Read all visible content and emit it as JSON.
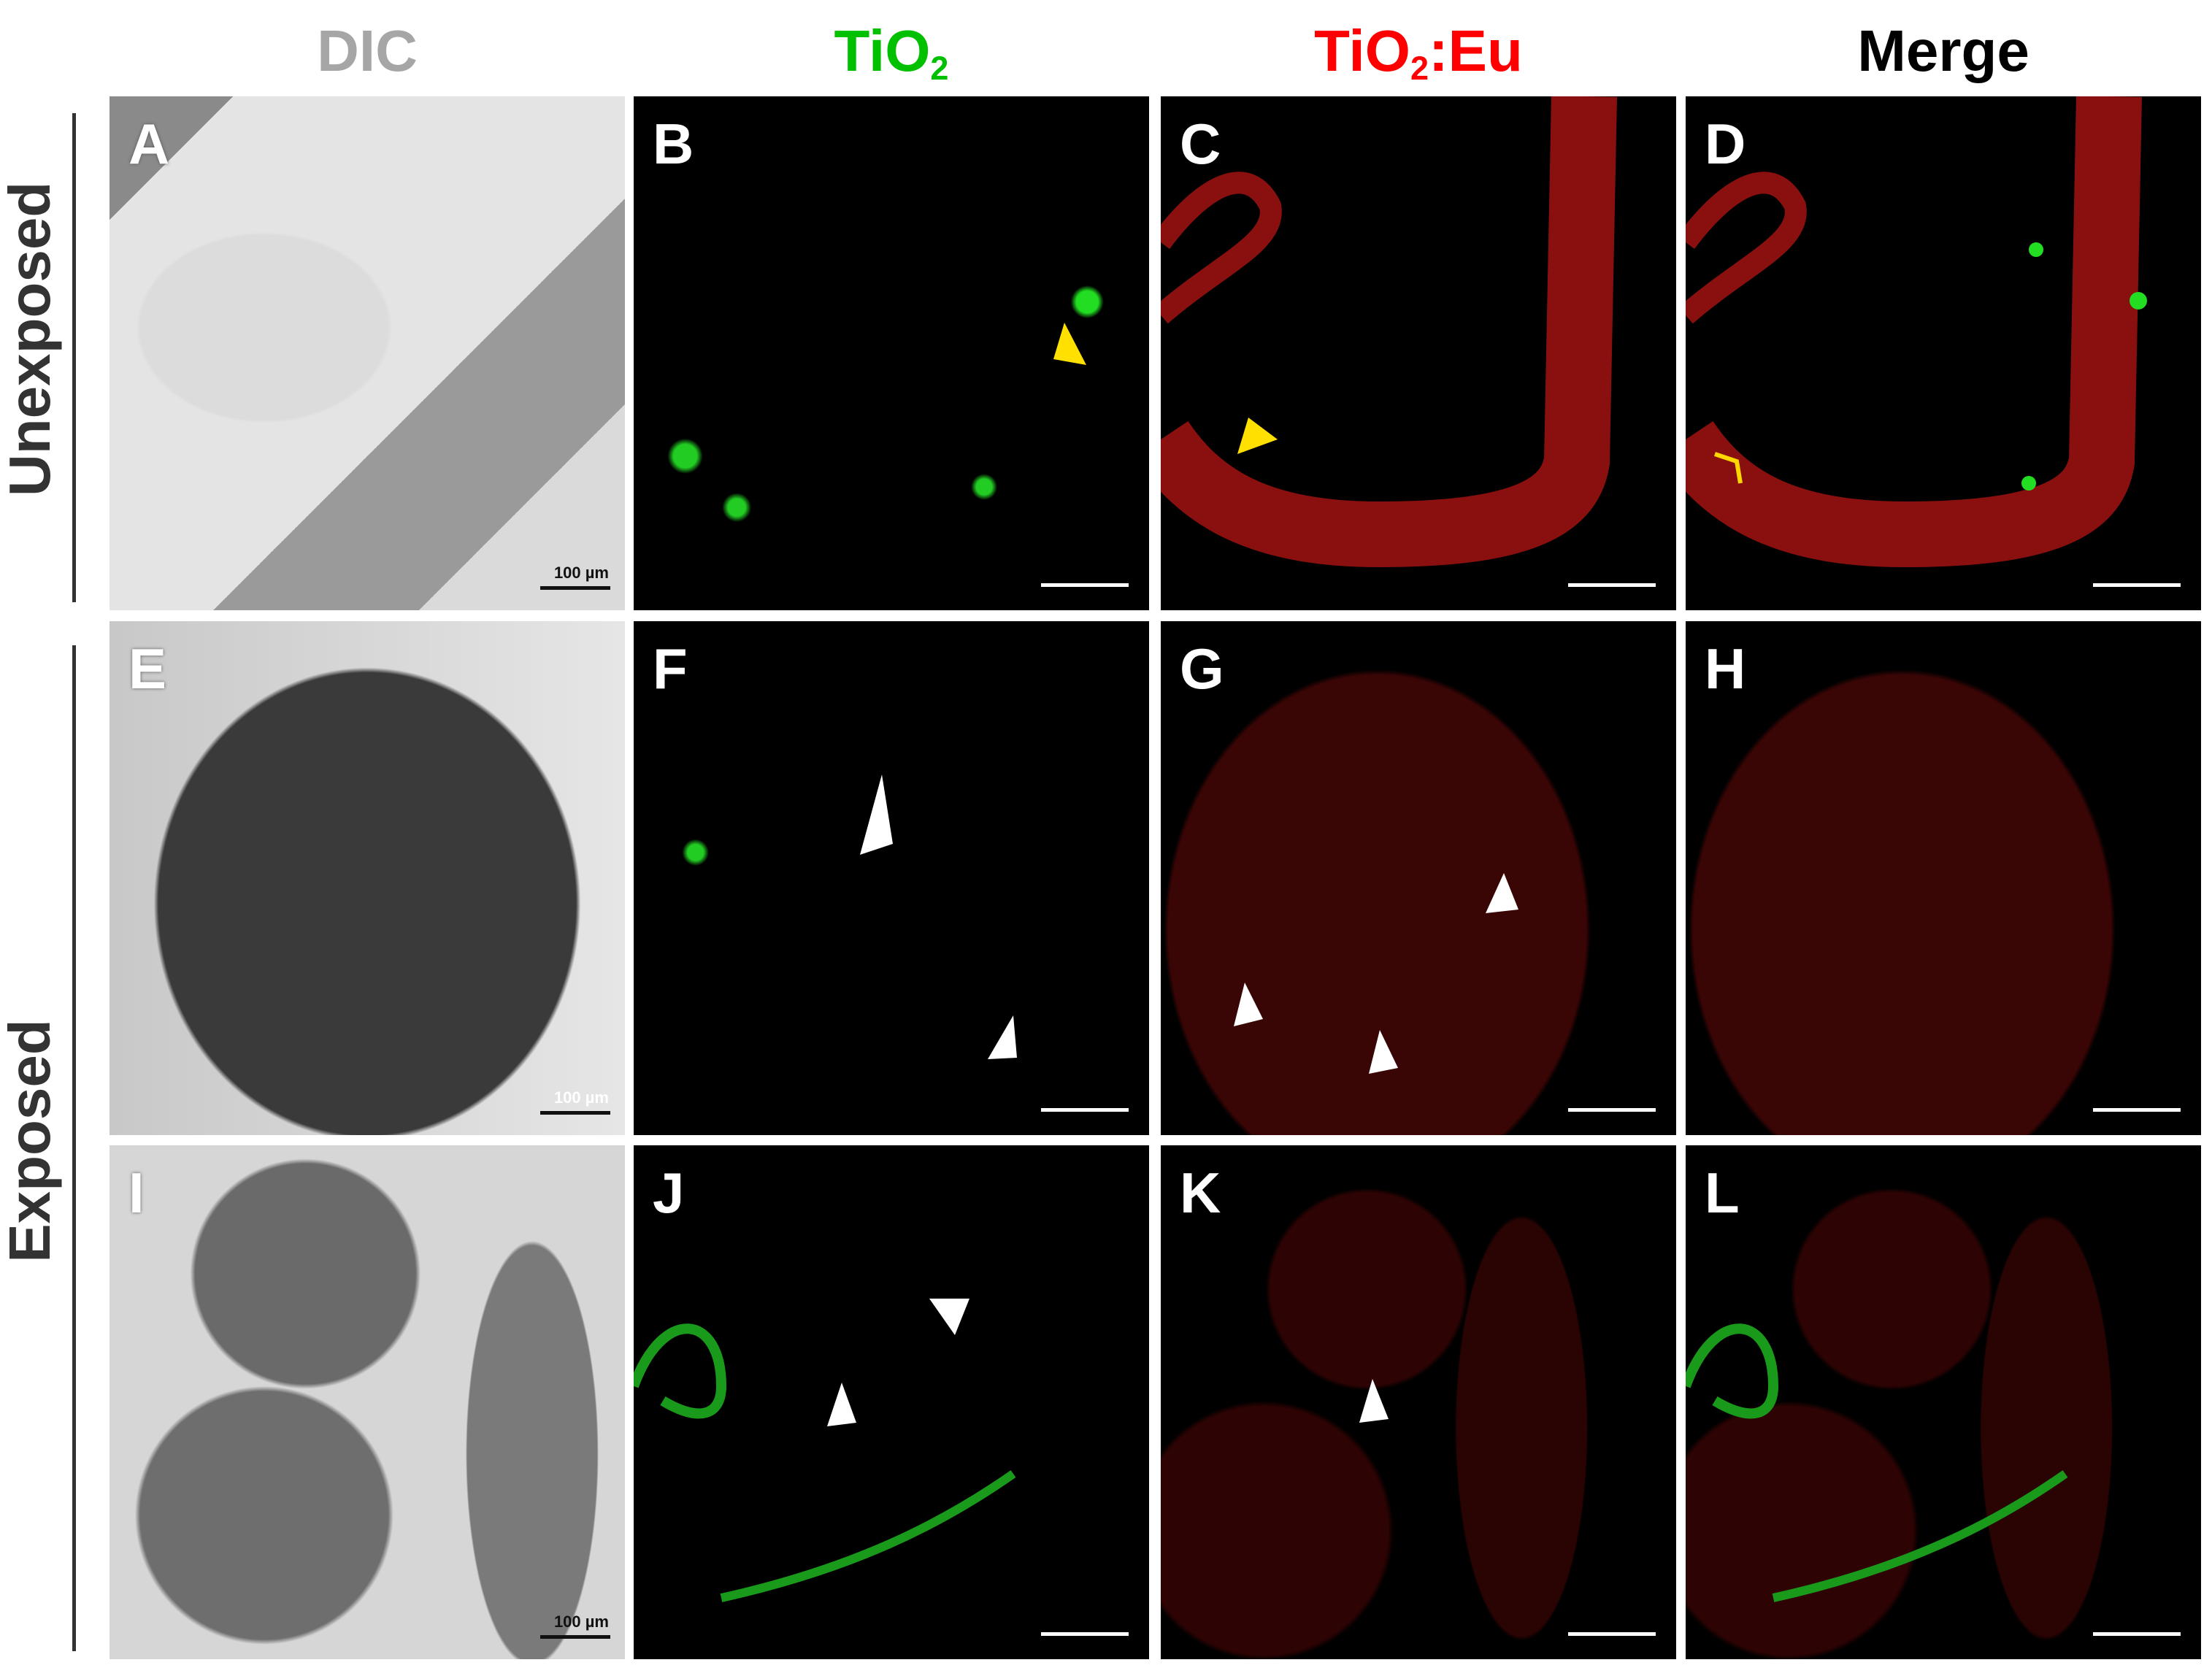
{
  "columns": [
    {
      "label": "DIC",
      "color": "#a6a6a6"
    },
    {
      "label": "TiO",
      "sub": "2",
      "color": "#00c000"
    },
    {
      "label": "TiO",
      "sub": "2",
      "suffix": ":Eu",
      "color": "#ff0000"
    },
    {
      "label": "Merge",
      "color": "#000000"
    }
  ],
  "rows": [
    {
      "label": "Unexposed"
    },
    {
      "label": "Exposed"
    }
  ],
  "panels": [
    "A",
    "B",
    "C",
    "D",
    "E",
    "F",
    "G",
    "H",
    "I",
    "J",
    "K",
    "L"
  ],
  "scale_bar": "100 µm",
  "arrow_colors": {
    "yellow": "#ffe000",
    "white": "#ffffff"
  }
}
